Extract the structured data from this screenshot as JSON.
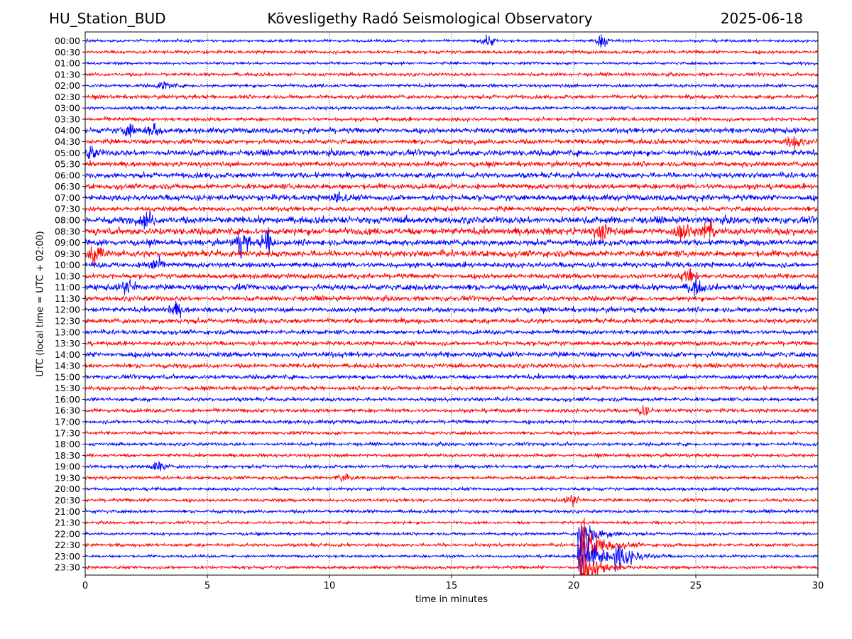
{
  "header": {
    "station": "HU_Station_BUD",
    "observatory": "Kövesligethy Radó Seismological Observatory",
    "date": "2025-06-18"
  },
  "chart_data": {
    "type": "line",
    "xlabel": "time in minutes",
    "ylabel": "UTC (local time = UTC + 02:00)",
    "xlim": [
      0,
      30
    ],
    "x_ticks": [
      0,
      5,
      10,
      15,
      20,
      25,
      30
    ],
    "grid": "vertical dotted at 5-minute ticks",
    "row_colors": [
      "#0000ff",
      "#ff0000"
    ],
    "rows": [
      "00:00",
      "00:30",
      "01:00",
      "01:30",
      "02:00",
      "02:30",
      "03:00",
      "03:30",
      "04:00",
      "04:30",
      "05:00",
      "05:30",
      "06:00",
      "06:30",
      "07:00",
      "07:30",
      "08:00",
      "08:30",
      "09:00",
      "09:30",
      "10:00",
      "10:30",
      "11:00",
      "11:30",
      "12:00",
      "12:30",
      "13:00",
      "13:30",
      "14:00",
      "14:30",
      "15:00",
      "15:30",
      "16:00",
      "16:30",
      "17:00",
      "17:30",
      "18:00",
      "18:30",
      "19:00",
      "19:30",
      "20:00",
      "20:30",
      "21:00",
      "21:30",
      "22:00",
      "22:30",
      "23:00",
      "23:30"
    ],
    "row_amplitude": [
      0.25,
      0.3,
      0.25,
      0.3,
      0.3,
      0.35,
      0.3,
      0.35,
      0.5,
      0.45,
      0.55,
      0.45,
      0.5,
      0.5,
      0.55,
      0.45,
      0.65,
      0.65,
      0.55,
      0.6,
      0.5,
      0.45,
      0.55,
      0.45,
      0.45,
      0.45,
      0.4,
      0.4,
      0.5,
      0.4,
      0.4,
      0.35,
      0.35,
      0.35,
      0.35,
      0.3,
      0.3,
      0.3,
      0.3,
      0.3,
      0.3,
      0.3,
      0.3,
      0.25,
      0.25,
      0.3,
      0.25,
      0.3
    ],
    "events": [
      {
        "row": "00:00",
        "minute": 16.5,
        "amplitude": 1.0
      },
      {
        "row": "00:00",
        "minute": 21.2,
        "amplitude": 1.2
      },
      {
        "row": "02:00",
        "minute": 3.3,
        "amplitude": 0.9
      },
      {
        "row": "04:00",
        "minute": 1.8,
        "amplitude": 1.1
      },
      {
        "row": "04:00",
        "minute": 2.8,
        "amplitude": 1.2
      },
      {
        "row": "04:30",
        "minute": 29.0,
        "amplitude": 1.2
      },
      {
        "row": "05:00",
        "minute": 0.2,
        "amplitude": 1.2
      },
      {
        "row": "07:00",
        "minute": 10.4,
        "amplitude": 1.0
      },
      {
        "row": "08:00",
        "minute": 2.5,
        "amplitude": 1.3
      },
      {
        "row": "08:30",
        "minute": 21.2,
        "amplitude": 1.6
      },
      {
        "row": "08:30",
        "minute": 24.5,
        "amplitude": 1.6
      },
      {
        "row": "08:30",
        "minute": 25.5,
        "amplitude": 1.6
      },
      {
        "row": "09:00",
        "minute": 6.4,
        "amplitude": 2.0
      },
      {
        "row": "09:00",
        "minute": 7.5,
        "amplitude": 2.0
      },
      {
        "row": "09:30",
        "minute": 0.5,
        "amplitude": 1.8
      },
      {
        "row": "10:00",
        "minute": 2.8,
        "amplitude": 1.3
      },
      {
        "row": "10:30",
        "minute": 24.7,
        "amplitude": 1.2
      },
      {
        "row": "11:00",
        "minute": 1.8,
        "amplitude": 1.5
      },
      {
        "row": "11:00",
        "minute": 25.0,
        "amplitude": 1.3
      },
      {
        "row": "12:00",
        "minute": 3.7,
        "amplitude": 1.1
      },
      {
        "row": "16:30",
        "minute": 22.8,
        "amplitude": 0.9
      },
      {
        "row": "19:00",
        "minute": 3.0,
        "amplitude": 1.0
      },
      {
        "row": "19:30",
        "minute": 10.6,
        "amplitude": 0.9
      },
      {
        "row": "20:30",
        "minute": 20.0,
        "amplitude": 1.0
      },
      {
        "row": "22:00",
        "minute": 20.3,
        "amplitude": 3.0
      },
      {
        "row": "22:30",
        "minute": 20.4,
        "amplitude": 5.0
      },
      {
        "row": "23:00",
        "minute": 20.3,
        "amplitude": 6.0
      },
      {
        "row": "23:00",
        "minute": 21.8,
        "amplitude": 2.5
      },
      {
        "row": "23:30",
        "minute": 20.4,
        "amplitude": 3.5
      }
    ]
  }
}
